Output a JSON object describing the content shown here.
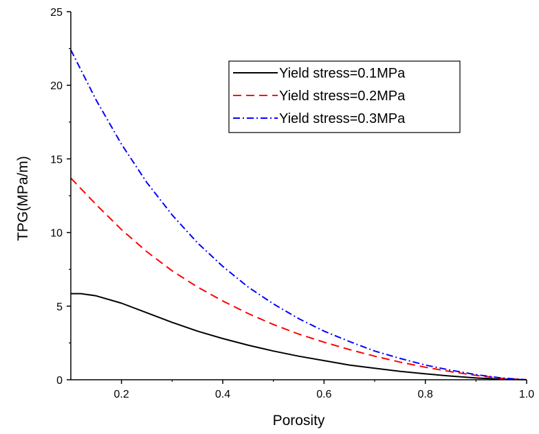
{
  "chart_data": {
    "type": "line",
    "xlabel": "Porosity",
    "ylabel": "TPG(MPa/m)",
    "xlim": [
      0.1,
      1.0
    ],
    "ylim": [
      0,
      25
    ],
    "xticks": [
      0.2,
      0.4,
      0.6,
      0.8,
      1.0
    ],
    "xtick_labels": [
      "0.2",
      "0.4",
      "0.6",
      "0.8",
      "1.0"
    ],
    "yticks": [
      0,
      5,
      10,
      15,
      20,
      25
    ],
    "ytick_labels": [
      "0",
      "5",
      "10",
      "15",
      "20",
      "25"
    ],
    "grid": false,
    "legend_position": "top-right",
    "series": [
      {
        "name": "Yield stress=0.1MPa",
        "color": "#000000",
        "dash": "solid",
        "x": [
          0.1,
          0.12,
          0.15,
          0.2,
          0.25,
          0.3,
          0.35,
          0.4,
          0.45,
          0.5,
          0.55,
          0.6,
          0.65,
          0.7,
          0.75,
          0.8,
          0.85,
          0.9,
          0.95,
          1.0
        ],
        "y": [
          5.85,
          5.85,
          5.7,
          5.2,
          4.55,
          3.9,
          3.3,
          2.8,
          2.35,
          1.95,
          1.6,
          1.3,
          1.0,
          0.78,
          0.57,
          0.4,
          0.25,
          0.12,
          0.04,
          0.0
        ]
      },
      {
        "name": "Yield stress=0.2MPa",
        "color": "#ff0000",
        "dash": "dashed",
        "x": [
          0.1,
          0.15,
          0.2,
          0.25,
          0.3,
          0.35,
          0.4,
          0.45,
          0.5,
          0.55,
          0.6,
          0.65,
          0.7,
          0.75,
          0.8,
          0.85,
          0.9,
          0.95,
          1.0
        ],
        "y": [
          13.7,
          11.9,
          10.2,
          8.7,
          7.4,
          6.3,
          5.35,
          4.5,
          3.75,
          3.1,
          2.55,
          2.05,
          1.6,
          1.2,
          0.85,
          0.55,
          0.3,
          0.1,
          0.0
        ]
      },
      {
        "name": "Yield stress=0.3MPa",
        "color": "#0000ff",
        "dash": "dashdot",
        "x": [
          0.1,
          0.15,
          0.2,
          0.25,
          0.3,
          0.35,
          0.4,
          0.45,
          0.5,
          0.55,
          0.6,
          0.65,
          0.7,
          0.75,
          0.8,
          0.85,
          0.9,
          0.95,
          1.0
        ],
        "y": [
          22.4,
          19.0,
          16.0,
          13.4,
          11.2,
          9.3,
          7.7,
          6.3,
          5.15,
          4.15,
          3.3,
          2.6,
          1.95,
          1.45,
          1.0,
          0.65,
          0.35,
          0.12,
          0.0
        ]
      }
    ]
  }
}
